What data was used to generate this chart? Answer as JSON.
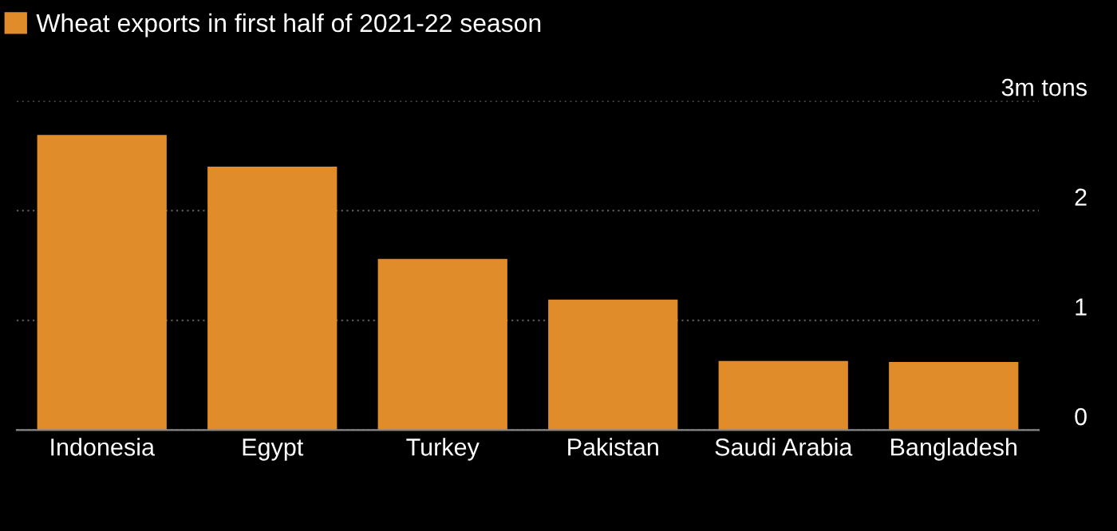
{
  "chart_data": {
    "type": "bar",
    "categories": [
      "Indonesia",
      "Egypt",
      "Turkey",
      "Pakistan",
      "Saudi Arabia",
      "Bangladesh"
    ],
    "series": [
      {
        "name": "Wheat exports in first half of 2021-22 season",
        "color": "#e08c2a",
        "values": [
          2.69,
          2.4,
          1.56,
          1.19,
          0.63,
          0.62
        ]
      }
    ],
    "ylim": [
      0,
      3
    ],
    "yticks": [
      0,
      1,
      2,
      {
        "value": 3,
        "label": "3m tons"
      }
    ],
    "grid": "y",
    "legend": "top left"
  }
}
